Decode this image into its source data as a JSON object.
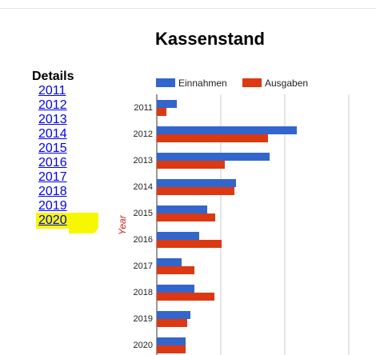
{
  "title": "Kassenstand",
  "sidebar": {
    "heading": "Details",
    "links": [
      "2011",
      "2012",
      "2013",
      "2014",
      "2015",
      "2016",
      "2017",
      "2018",
      "2019",
      "2020"
    ],
    "highlighted": "2020"
  },
  "colors": {
    "income": "#3366cc",
    "expenses": "#dc3912",
    "highlight": "#f7f700"
  },
  "chart_data": {
    "type": "bar",
    "orientation": "horizontal",
    "title": "Kassenstand",
    "ylabel": "Year",
    "categories": [
      "2011",
      "2012",
      "2013",
      "2014",
      "2015",
      "2016",
      "2017",
      "2018",
      "2019",
      "2020"
    ],
    "series": [
      {
        "name": "Einnahmen",
        "values": [
          12.5,
          87.5,
          70.5,
          49.5,
          31.5,
          26.5,
          15.5,
          23.5,
          21,
          18
        ]
      },
      {
        "name": "Ausgaben",
        "values": [
          6,
          69.5,
          42.5,
          48.5,
          36.5,
          40.5,
          23.5,
          36,
          19,
          18
        ]
      }
    ],
    "xlim": [
      0,
      130
    ],
    "grid": true,
    "legend_position": "top"
  }
}
